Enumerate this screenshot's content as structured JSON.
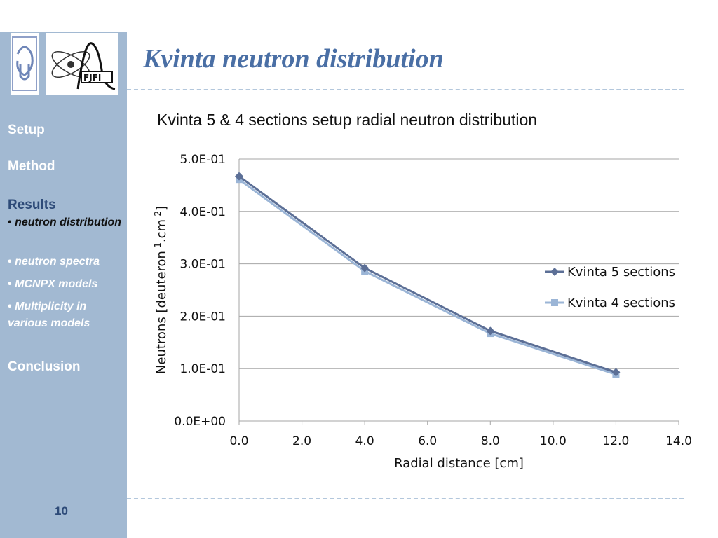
{
  "sidebar": {
    "logos": [
      "ujf-logo",
      "fjfi-logo"
    ],
    "nav": {
      "setup": "Setup",
      "method": "Method",
      "results": "Results",
      "conclusion": "Conclusion"
    },
    "subitems": [
      {
        "bullet": "•",
        "label": "neutron distribution"
      },
      {
        "bullet": "•",
        "label": "neutron spectra"
      },
      {
        "bullet": "•",
        "label": "MCNPX models"
      },
      {
        "bullet": "•",
        "label": "Multiplicity in various models"
      }
    ],
    "page_number": "10"
  },
  "slide": {
    "title": "Kvinta neutron distribution"
  },
  "colors": {
    "sidebar": "#a2b9d2",
    "title": "#4a6fa5",
    "active_nav": "#2d4a78",
    "series_5": "#5c6f96",
    "series_4": "#9bb5d6"
  },
  "chart_data": {
    "type": "line",
    "title": "Kvinta 5 & 4 sections setup radial neutron distribution",
    "xlabel": "Radial distance [cm]",
    "ylabel_parts": [
      "Neutrons [deuteron",
      "-1",
      ".cm",
      "-2",
      "]"
    ],
    "xlim": [
      0,
      14
    ],
    "ylim": [
      0,
      0.5
    ],
    "xticks": [
      "0.0",
      "2.0",
      "4.0",
      "6.0",
      "8.0",
      "10.0",
      "12.0",
      "14.0"
    ],
    "yticks": [
      "0.0E+00",
      "1.0E-01",
      "2.0E-01",
      "3.0E-01",
      "4.0E-01",
      "5.0E-01"
    ],
    "grid": "horizontal",
    "legend_position": "right",
    "series": [
      {
        "name": "Kvinta 5 sections",
        "marker": "diamond",
        "color": "#5c6f96",
        "x": [
          0,
          4,
          8,
          12
        ],
        "y": [
          0.467,
          0.292,
          0.172,
          0.093
        ]
      },
      {
        "name": "Kvinta 4 sections",
        "marker": "square",
        "color": "#9bb5d6",
        "x": [
          0,
          4,
          8,
          12
        ],
        "y": [
          0.461,
          0.286,
          0.167,
          0.089
        ]
      }
    ]
  }
}
